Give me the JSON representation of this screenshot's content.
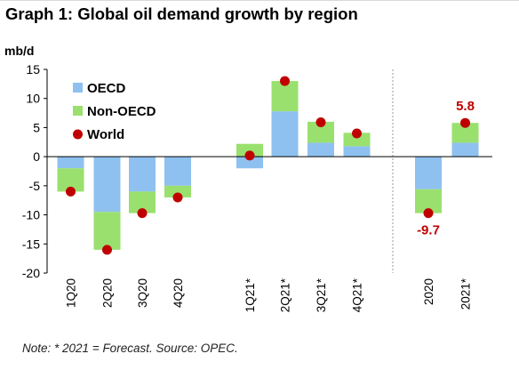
{
  "title": "Graph 1: Global oil demand growth by region",
  "note": "Note: * 2021 = Forecast. Source: OPEC.",
  "colors": {
    "oecd": "#8ec1ef",
    "non_oecd": "#9ae06e",
    "world": "#c00000",
    "separator": "#9a9a9a"
  },
  "chart_data": {
    "type": "bar",
    "stacked": true,
    "unit_label": "mb/d",
    "ylim": [
      -20,
      15
    ],
    "yticks": [
      15,
      10,
      5,
      0,
      -5,
      -10,
      -15,
      -20
    ],
    "categories": [
      "1Q20",
      "2Q20",
      "3Q20",
      "4Q20",
      "1Q21*",
      "2Q21*",
      "3Q21*",
      "4Q21*",
      "2020",
      "2021*"
    ],
    "series": [
      {
        "name": "OECD",
        "values": [
          -2.0,
          -9.5,
          -6.0,
          -5.0,
          -2.0,
          7.8,
          2.4,
          1.8,
          -5.6,
          2.4
        ]
      },
      {
        "name": "Non-OECD",
        "values": [
          -4.0,
          -6.5,
          -3.7,
          -2.0,
          2.2,
          5.2,
          3.6,
          2.3,
          -4.1,
          3.4
        ]
      }
    ],
    "world": {
      "name": "World",
      "values": [
        -6.0,
        -16.0,
        -9.7,
        -7.0,
        0.2,
        13.0,
        5.9,
        4.0,
        -9.7,
        5.8
      ]
    },
    "data_labels": [
      {
        "category": "2020",
        "text": "-9.7"
      },
      {
        "category": "2021*",
        "text": "5.8"
      }
    ],
    "legend_position": "top-left",
    "grid": false
  }
}
